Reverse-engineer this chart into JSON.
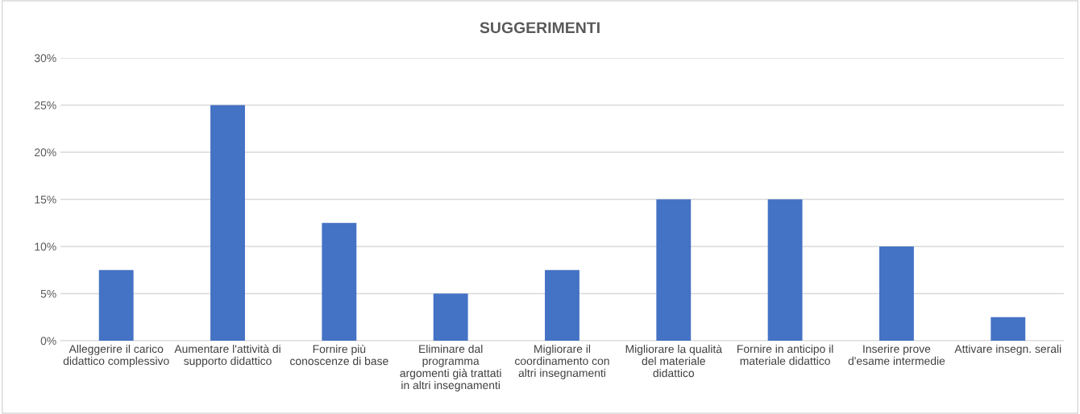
{
  "chart_data": {
    "type": "bar",
    "title": "SUGGERIMENTI",
    "categories": [
      "Alleggerire il carico\ndidattico complessivo",
      "Aumentare l'attività di\nsupporto didattico",
      "Fornire più\nconoscenze di base",
      "Eliminare dal\nprogramma\nargomenti già trattati\nin altri insegnamenti",
      "Migliorare il\ncoordinamento con\naltri insegnamenti",
      "Migliorare la qualità\ndel materiale\ndidattico",
      "Fornire in anticipo il\nmateriale didattico",
      "Inserire prove\nd'esame intermedie",
      "Attivare insegn. serali"
    ],
    "values": [
      7.5,
      25,
      12.5,
      5,
      7.5,
      15,
      15,
      10,
      2.5
    ],
    "color": "#4472c4",
    "ylim": [
      0,
      30
    ],
    "yticks": [
      {
        "value": 0,
        "label": "0%"
      },
      {
        "value": 5,
        "label": "5%"
      },
      {
        "value": 10,
        "label": "10%"
      },
      {
        "value": 15,
        "label": "15%"
      },
      {
        "value": 20,
        "label": "20%"
      },
      {
        "value": 25,
        "label": "25%"
      },
      {
        "value": 30,
        "label": "30%"
      }
    ],
    "grid": "y",
    "legend": false
  }
}
